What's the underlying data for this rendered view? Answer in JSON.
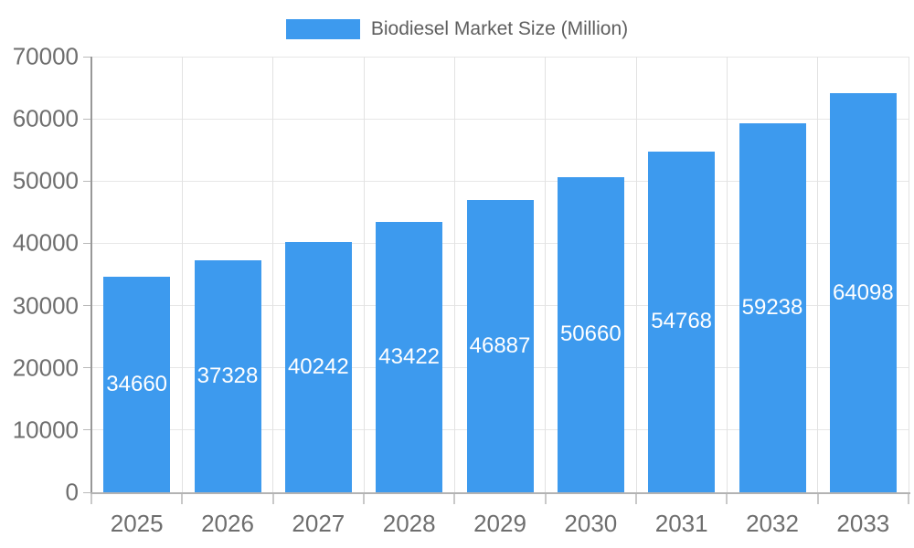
{
  "chart_data": {
    "type": "bar",
    "title": "",
    "legend": "Biodiesel Market Size (Million)",
    "legend_position": "top-center",
    "categories": [
      "2025",
      "2026",
      "2027",
      "2028",
      "2029",
      "2030",
      "2031",
      "2032",
      "2033"
    ],
    "series": [
      {
        "name": "Biodiesel Market Size (Million)",
        "values": [
          34660,
          37328,
          40242,
          43422,
          46887,
          50660,
          54768,
          59238,
          64098
        ]
      }
    ],
    "xlabel": "",
    "ylabel": "",
    "ylim": [
      0,
      70000
    ],
    "yticks": [
      0,
      10000,
      20000,
      30000,
      40000,
      50000,
      60000,
      70000
    ],
    "grid": true,
    "value_labels": "centered-inside-bars",
    "colors": {
      "bar": "#3D9AEE",
      "bar_value_label": "#ffffff",
      "axis_tick_text": "#6e6e6e",
      "legend_text": "#5e5e5e",
      "gridline": "#e7e7e7",
      "axis_line": "#a3a3a3",
      "background": "#ffffff"
    }
  }
}
